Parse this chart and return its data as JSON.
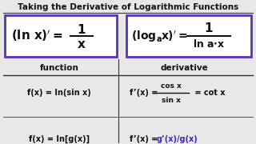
{
  "title": "Taking the Derivative of Logarithmic Functions",
  "title_fontsize": 7.5,
  "bg_color": "#e8e8e8",
  "box_color": "#5533bb",
  "col_header_left": "function",
  "col_header_right": "derivative",
  "row1_left": "f(x) = ln(sin x)",
  "row1_right_prefix": "f’(x) = ",
  "row1_right_num": "cos x",
  "row1_right_den": "sin x",
  "row1_right_suffix": " = cot x",
  "row2_left": "f(x) = ln[g(x)]",
  "row2_right_prefix": "f’(x) = ",
  "row2_right_purple": "g’(x)/g(x)",
  "row_fontsize": 7.0,
  "header_fontsize": 7.5,
  "purple_color": "#4422cc",
  "black": "#111111",
  "white": "#ffffff",
  "line_color": "#333333"
}
